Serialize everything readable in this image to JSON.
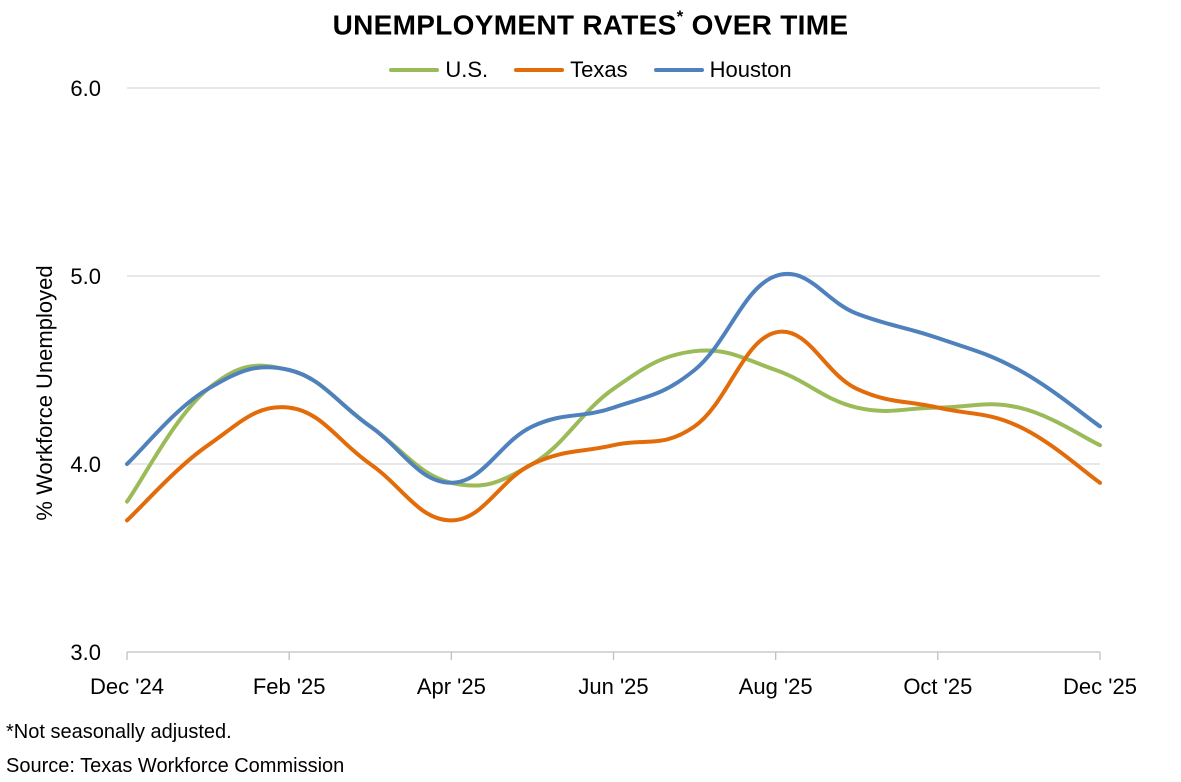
{
  "chart_data": {
    "type": "line",
    "title": "UNEMPLOYMENT RATES",
    "title_marker": "*",
    "title_suffix": " OVER TIME",
    "ylabel": "% Workforce Unemployed",
    "xlabel": "",
    "ylim": [
      3.0,
      6.0
    ],
    "yticks": [
      "3.0",
      "4.0",
      "5.0",
      "6.0"
    ],
    "x": [
      "Dec '24",
      "Jan '25",
      "Feb '25",
      "Mar '25",
      "Apr '25",
      "May '25",
      "Jun '25",
      "Jul '25",
      "Aug '25",
      "Sep '25",
      "Oct '25",
      "Nov '25",
      "Dec '25"
    ],
    "xticks": [
      "Dec '24",
      "Feb '25",
      "Apr '25",
      "Jun '25",
      "Aug '25",
      "Oct '25",
      "Dec '25"
    ],
    "grid": true,
    "legend_position": "top",
    "series": [
      {
        "name": "U.S.",
        "color": "#9BBB59",
        "values": [
          3.8,
          4.4,
          4.5,
          4.2,
          3.9,
          4.0,
          4.4,
          4.6,
          4.5,
          4.3,
          4.3,
          4.3,
          4.1
        ]
      },
      {
        "name": "Texas",
        "color": "#E36C0A",
        "values": [
          3.7,
          4.1,
          4.3,
          4.0,
          3.7,
          4.0,
          4.1,
          4.2,
          4.7,
          4.4,
          4.3,
          4.2,
          3.9
        ]
      },
      {
        "name": "Houston",
        "color": "#4F81BD",
        "values": [
          4.0,
          4.4,
          4.5,
          4.2,
          3.9,
          4.2,
          4.3,
          4.5,
          5.0,
          4.8,
          4.67,
          4.5,
          4.2
        ]
      }
    ]
  },
  "footnote": "*Not seasonally adjusted.",
  "source": "Source: Texas Workforce Commission"
}
